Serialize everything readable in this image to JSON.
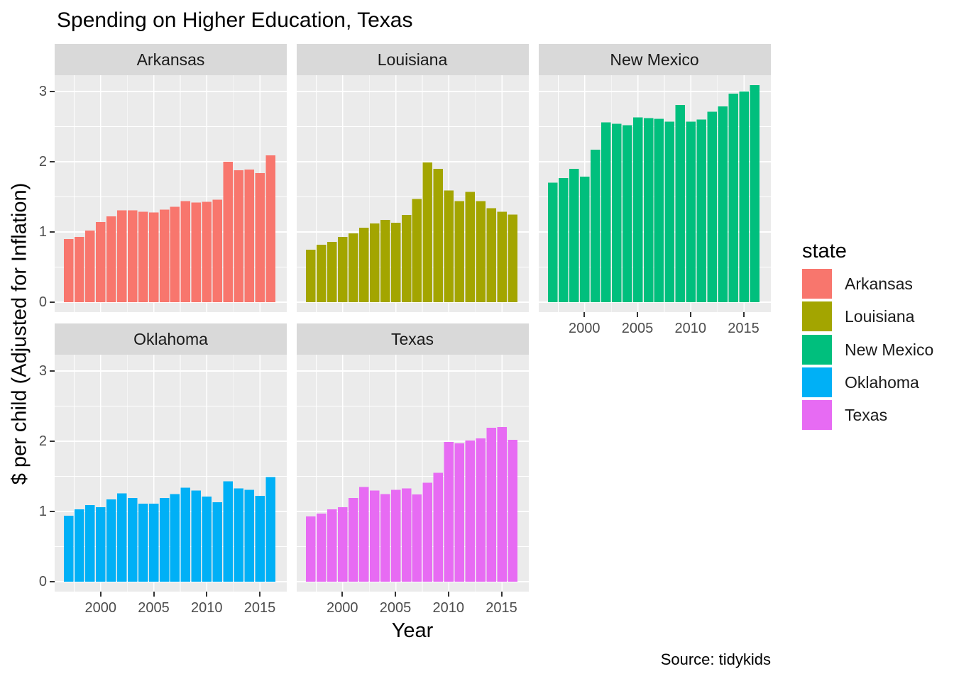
{
  "title": "Spending on Higher Education, Texas",
  "caption": "Source: tidykids",
  "legend": {
    "title": "state",
    "items": [
      {
        "label": "Arkansas",
        "color": "#F8766D"
      },
      {
        "label": "Louisiana",
        "color": "#A3A500"
      },
      {
        "label": "New Mexico",
        "color": "#00BF7D"
      },
      {
        "label": "Oklahoma",
        "color": "#00B0F6"
      },
      {
        "label": "Texas",
        "color": "#E76BF3"
      }
    ]
  },
  "chart_data": {
    "type": "bar",
    "title": "Spending on Higher Education, Texas",
    "xlabel": "Year",
    "ylabel": "$ per child (Adjusted for Inflation)",
    "facet_variable": "state",
    "x": [
      1997,
      1998,
      1999,
      2000,
      2001,
      2002,
      2003,
      2004,
      2005,
      2006,
      2007,
      2008,
      2009,
      2010,
      2011,
      2012,
      2013,
      2014,
      2015,
      2016
    ],
    "x_tick_labels": [
      "2000",
      "2005",
      "2010",
      "2015"
    ],
    "x_ticks": [
      2000,
      2005,
      2010,
      2015
    ],
    "y_tick_labels": [
      "0",
      "1",
      "2",
      "3"
    ],
    "y_ticks": [
      0,
      1,
      2,
      3
    ],
    "ylim": [
      -0.14,
      3.23
    ],
    "grid": "white major and minor gridlines on grey panel",
    "legend_position": "right",
    "series": [
      {
        "name": "Arkansas",
        "color": "#F8766D",
        "values": [
          0.9,
          0.93,
          1.02,
          1.14,
          1.22,
          1.31,
          1.31,
          1.29,
          1.28,
          1.32,
          1.36,
          1.44,
          1.42,
          1.43,
          1.46,
          2.0,
          1.88,
          1.89,
          1.84,
          2.09
        ]
      },
      {
        "name": "Louisiana",
        "color": "#A3A500",
        "values": [
          0.75,
          0.82,
          0.86,
          0.93,
          0.98,
          1.06,
          1.12,
          1.17,
          1.13,
          1.24,
          1.47,
          1.99,
          1.9,
          1.59,
          1.44,
          1.57,
          1.44,
          1.34,
          1.29,
          1.25
        ]
      },
      {
        "name": "New Mexico",
        "color": "#00BF7D",
        "values": [
          1.7,
          1.77,
          1.9,
          1.79,
          2.17,
          2.56,
          2.54,
          2.52,
          2.63,
          2.62,
          2.61,
          2.57,
          2.81,
          2.57,
          2.6,
          2.71,
          2.79,
          2.97,
          3.0,
          3.09
        ]
      },
      {
        "name": "Oklahoma",
        "color": "#00B0F6",
        "values": [
          0.94,
          1.03,
          1.09,
          1.06,
          1.17,
          1.26,
          1.19,
          1.11,
          1.11,
          1.19,
          1.25,
          1.34,
          1.3,
          1.21,
          1.13,
          1.43,
          1.33,
          1.31,
          1.22,
          1.49
        ]
      },
      {
        "name": "Texas",
        "color": "#E76BF3",
        "values": [
          0.93,
          0.97,
          1.03,
          1.06,
          1.19,
          1.35,
          1.3,
          1.25,
          1.31,
          1.33,
          1.24,
          1.41,
          1.55,
          1.99,
          1.97,
          2.01,
          2.04,
          2.19,
          2.2,
          2.02
        ]
      }
    ]
  },
  "colors": {
    "panel_background": "#EBEBEB",
    "strip_background": "#D9D9D9",
    "gridline": "#FFFFFF",
    "tick_label": "#4D4D4D",
    "tick_mark": "#333333"
  }
}
